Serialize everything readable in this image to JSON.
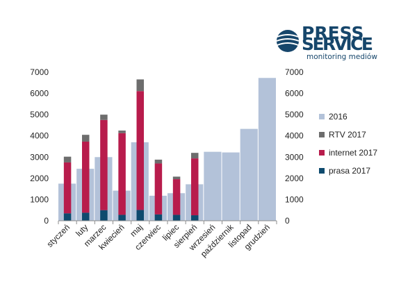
{
  "logo": {
    "line1": "PRESS",
    "line2": "SERVICE",
    "tagline": "monitoring mediów",
    "color": "#16466b"
  },
  "chart_data": {
    "type": "bar",
    "categories": [
      "styczeń",
      "luty",
      "marzec",
      "kwiecień",
      "maj",
      "czerwiec",
      "lipiec",
      "sierpień",
      "wrzesień",
      "październik",
      "listopad",
      "grudzień"
    ],
    "series_2016": {
      "name": "2016",
      "color": "#b3c2d9",
      "values": [
        1750,
        2450,
        3000,
        1420,
        3700,
        1180,
        1300,
        1720,
        3250,
        3220,
        4330,
        6730
      ]
    },
    "stacked_2017": [
      {
        "name": "prasa 2017",
        "color": "#0e4a6e",
        "values": [
          350,
          380,
          500,
          280,
          510,
          300,
          280,
          260
        ]
      },
      {
        "name": "internet 2017",
        "color": "#b81c4c",
        "values": [
          2400,
          3350,
          4250,
          3850,
          5600,
          2400,
          1680,
          2680
        ]
      },
      {
        "name": "RTV 2017",
        "color": "#6d6d6d",
        "values": [
          270,
          320,
          250,
          120,
          550,
          180,
          120,
          260
        ]
      }
    ],
    "legend_order": [
      "2016",
      "RTV 2017",
      "internet 2017",
      "prasa 2017"
    ],
    "legend_position": "right",
    "y_ticks": [
      "0",
      "1000",
      "2000",
      "3000",
      "4000",
      "5000",
      "6000",
      "7000"
    ],
    "ylim": [
      0,
      7000
    ],
    "secondary_axis": true,
    "grid": false
  }
}
